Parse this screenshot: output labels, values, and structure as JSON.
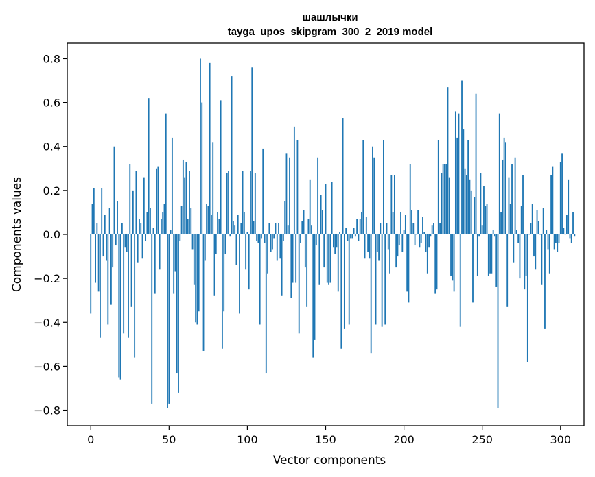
{
  "chart_data": {
    "type": "bar",
    "title": "шашлычки",
    "subtitle": "tayga_upos_skipgram_300_2_2019 model",
    "xlabel": "Vector components",
    "ylabel": "Components values",
    "xlim": [
      -15,
      315
    ],
    "ylim": [
      -0.87,
      0.87
    ],
    "xticks": [
      0,
      50,
      100,
      150,
      200,
      250,
      300
    ],
    "yticks": [
      -0.8,
      -0.6,
      -0.4,
      -0.2,
      0.0,
      0.2,
      0.4,
      0.6,
      0.8
    ],
    "ytick_labels": [
      "−0.8",
      "−0.6",
      "−0.4",
      "−0.2",
      "0.0",
      "0.2",
      "0.4",
      "0.6",
      "0.8"
    ],
    "grid": false,
    "bar_color": "#1f77b4",
    "values": [
      -0.36,
      0.14,
      0.21,
      -0.22,
      0.05,
      -0.26,
      -0.47,
      0.21,
      -0.1,
      0.09,
      -0.12,
      -0.41,
      0.12,
      -0.32,
      -0.15,
      0.4,
      -0.05,
      0.15,
      -0.65,
      -0.66,
      0.05,
      -0.45,
      -0.06,
      -0.08,
      -0.47,
      0.32,
      -0.33,
      0.2,
      -0.56,
      0.29,
      -0.13,
      0.07,
      0.05,
      -0.11,
      0.26,
      -0.03,
      0.1,
      0.62,
      0.12,
      -0.77,
      0.03,
      -0.27,
      0.3,
      0.31,
      -0.16,
      0.07,
      0.1,
      0.14,
      0.55,
      -0.79,
      -0.77,
      0.02,
      0.44,
      -0.27,
      -0.17,
      -0.63,
      -0.72,
      -0.03,
      0.13,
      0.34,
      0.26,
      0.33,
      0.07,
      0.29,
      0.12,
      -0.07,
      -0.23,
      -0.4,
      -0.41,
      -0.35,
      0.8,
      0.6,
      -0.53,
      -0.12,
      0.14,
      0.13,
      0.78,
      0.09,
      0.42,
      -0.28,
      -0.09,
      0.1,
      0.07,
      0.61,
      -0.52,
      -0.35,
      -0.09,
      0.28,
      0.29,
      -0.01,
      0.72,
      0.06,
      0.04,
      -0.14,
      0.09,
      -0.36,
      0.05,
      0.29,
      0.1,
      -0.16,
      0.01,
      -0.25,
      0.29,
      0.76,
      0.06,
      0.28,
      -0.03,
      -0.04,
      -0.41,
      -0.02,
      0.39,
      -0.04,
      -0.63,
      -0.18,
      0.05,
      -0.08,
      -0.07,
      -0.02,
      0.05,
      -0.12,
      0.05,
      -0.11,
      -0.28,
      -0.03,
      0.15,
      0.37,
      0.04,
      0.35,
      -0.29,
      -0.22,
      0.49,
      -0.22,
      0.43,
      -0.45,
      -0.04,
      0.06,
      0.11,
      -0.15,
      -0.33,
      0.07,
      0.25,
      0.04,
      -0.56,
      -0.48,
      -0.05,
      0.35,
      -0.23,
      0.18,
      0.11,
      -0.15,
      0.23,
      -0.22,
      -0.23,
      -0.22,
      0.24,
      -0.06,
      -0.09,
      -0.06,
      -0.26,
      0.01,
      -0.52,
      0.53,
      -0.43,
      0.03,
      -0.03,
      -0.41,
      -0.02,
      -0.02,
      0.03,
      -0.01,
      0.07,
      -0.03,
      0.07,
      0.1,
      0.43,
      -0.11,
      0.08,
      -0.08,
      -0.11,
      -0.54,
      0.4,
      0.35,
      -0.41,
      -0.08,
      -0.12,
      0.05,
      -0.42,
      0.43,
      -0.41,
      0.05,
      -0.07,
      -0.18,
      0.27,
      0.1,
      0.27,
      -0.15,
      -0.1,
      -0.05,
      0.1,
      -0.08,
      0.02,
      0.09,
      -0.26,
      -0.31,
      0.32,
      0.11,
      0.05,
      -0.05,
      0.0,
      0.11,
      -0.06,
      -0.04,
      0.08,
      0.01,
      -0.08,
      -0.18,
      -0.06,
      -0.01,
      0.04,
      0.05,
      -0.27,
      -0.25,
      0.43,
      0.05,
      0.28,
      0.32,
      0.32,
      0.32,
      0.67,
      0.26,
      -0.19,
      -0.21,
      -0.26,
      0.56,
      0.44,
      0.55,
      -0.42,
      0.7,
      0.48,
      0.3,
      0.27,
      0.43,
      0.25,
      0.2,
      -0.31,
      0.17,
      0.64,
      -0.19,
      -0.01,
      0.28,
      0.04,
      0.22,
      0.13,
      0.14,
      -0.19,
      -0.18,
      -0.18,
      0.02,
      -0.01,
      -0.24,
      -0.79,
      0.55,
      0.1,
      0.34,
      0.44,
      0.42,
      -0.33,
      0.26,
      0.14,
      0.32,
      -0.13,
      0.35,
      0.02,
      -0.04,
      -0.2,
      0.13,
      0.27,
      -0.25,
      -0.19,
      -0.58,
      0.0,
      0.05,
      0.14,
      -0.1,
      -0.16,
      0.11,
      0.06,
      0.0,
      -0.23,
      0.12,
      -0.43,
      0.02,
      -0.07,
      -0.18,
      0.27,
      0.31,
      -0.07,
      -0.04,
      -0.08,
      -0.04,
      0.33,
      0.37,
      0.03,
      0.0,
      0.09,
      0.25,
      -0.02,
      -0.04,
      0.1,
      -0.01
    ]
  }
}
